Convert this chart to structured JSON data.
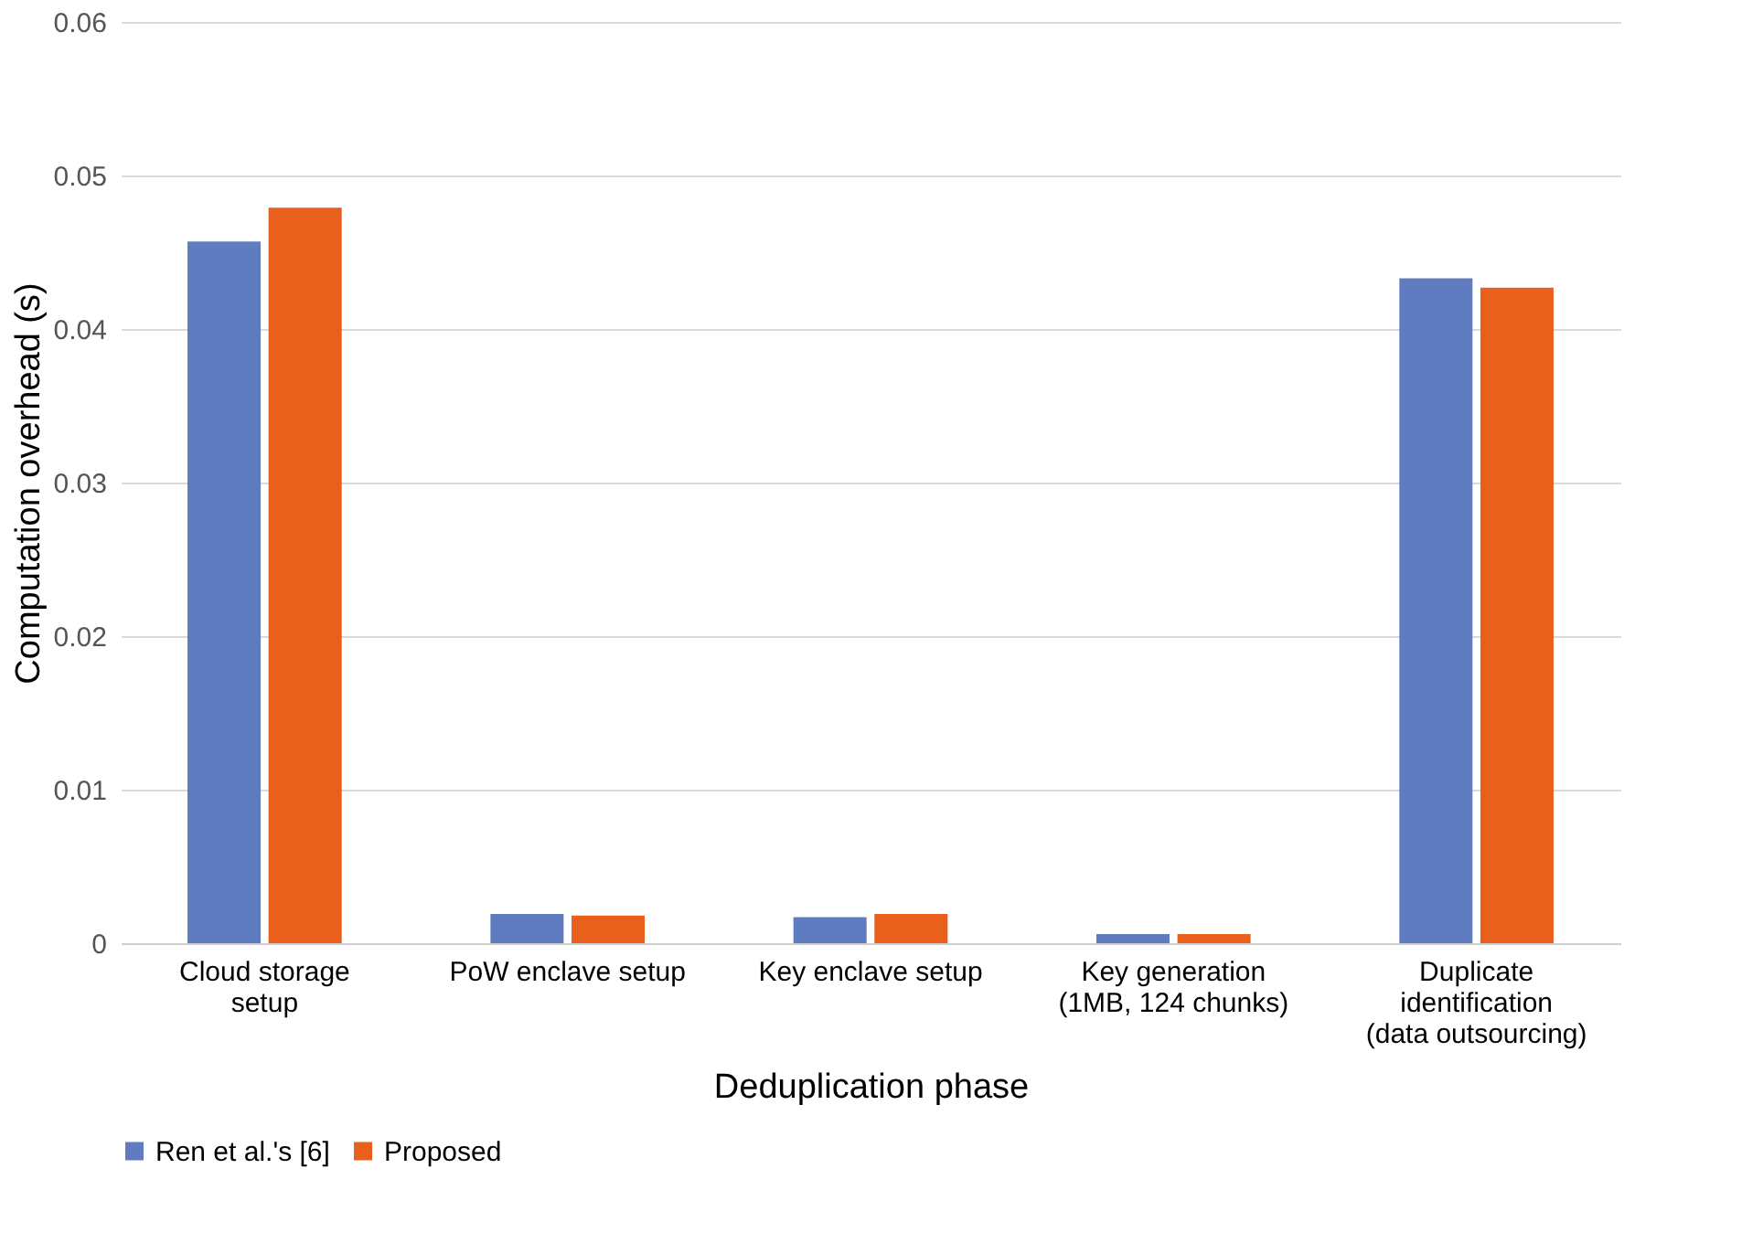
{
  "chart_data": {
    "type": "bar",
    "xlabel": "Deduplication phase",
    "ylabel": "Computation overhead (s)",
    "categories": [
      "Cloud storage\nsetup",
      "PoW enclave setup",
      "Key enclave setup",
      "Key generation\n(1MB, 124 chunks)",
      "Duplicate\nidentification\n(data outsourcing)"
    ],
    "series": [
      {
        "name": "Ren et al.'s [6]",
        "color": "#5f7cc1",
        "values": [
          0.0457,
          0.0019,
          0.0017,
          0.0006,
          0.0433
        ]
      },
      {
        "name": "Proposed",
        "color": "#e8601c",
        "values": [
          0.0479,
          0.0018,
          0.0019,
          0.0006,
          0.0427
        ]
      }
    ],
    "ylim": [
      0,
      0.06
    ],
    "yticks": [
      0,
      0.01,
      0.02,
      0.03,
      0.04,
      0.05,
      0.06
    ],
    "grid": "y",
    "legend": "bottom"
  }
}
